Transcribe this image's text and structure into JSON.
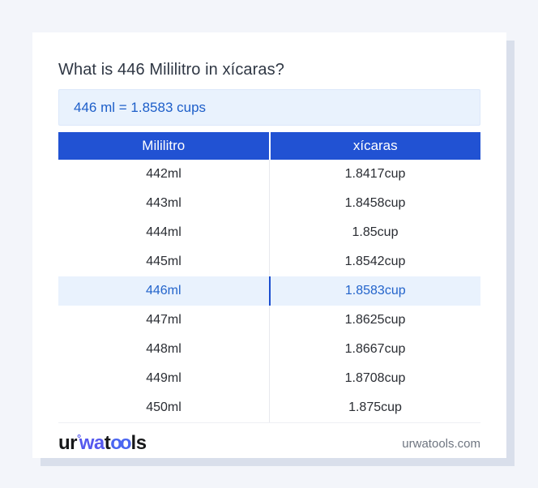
{
  "title": "What is 446 Mililitro in xícaras?",
  "result": {
    "text": "446 ml = 1.8583 cups"
  },
  "table": {
    "headers": [
      "Mililitro",
      "xícaras"
    ],
    "highlighted_row_index": 4,
    "rows": [
      {
        "ml": "442ml",
        "cup": "1.8417cup"
      },
      {
        "ml": "443ml",
        "cup": "1.8458cup"
      },
      {
        "ml": "444ml",
        "cup": "1.85cup"
      },
      {
        "ml": "445ml",
        "cup": "1.8542cup"
      },
      {
        "ml": "446ml",
        "cup": "1.8583cup"
      },
      {
        "ml": "447ml",
        "cup": "1.8625cup"
      },
      {
        "ml": "448ml",
        "cup": "1.8667cup"
      },
      {
        "ml": "449ml",
        "cup": "1.8708cup"
      },
      {
        "ml": "450ml",
        "cup": "1.875cup"
      }
    ]
  },
  "footer": {
    "logo": {
      "part_ur": "ur",
      "ring": "°",
      "part_wa": "wa",
      "part_t": "t",
      "part_oo": "oo",
      "part_ls": "ls"
    },
    "domain": "urwatools.com"
  },
  "colors": {
    "page_background": "#f3f5fa",
    "card_background": "#ffffff",
    "card_shadow": "#d9dfeb",
    "header_blue": "#2152d3",
    "result_banner_bg": "#e9f2fd",
    "result_text_blue": "#1d5ec9",
    "highlight_row_bg": "#e9f2fd",
    "highlight_text_blue": "#2364cb",
    "highlight_divider_blue": "#1b4ecf",
    "title_text": "#2f3744",
    "cell_text": "#2a2d33",
    "footer_domain_gray": "#6e7580",
    "logo_blue": "#5558ee"
  }
}
